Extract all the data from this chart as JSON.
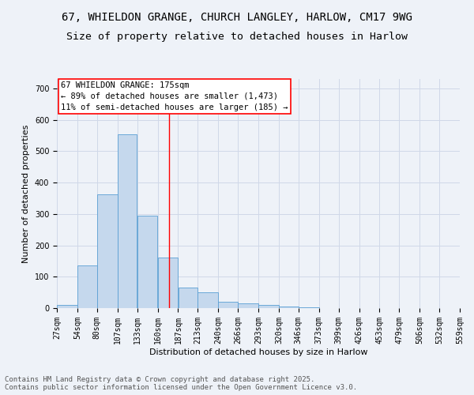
{
  "title1": "67, WHIELDON GRANGE, CHURCH LANGLEY, HARLOW, CM17 9WG",
  "title2": "Size of property relative to detached houses in Harlow",
  "xlabel": "Distribution of detached houses by size in Harlow",
  "ylabel": "Number of detached properties",
  "bar_edges": [
    27,
    54,
    80,
    107,
    133,
    160,
    187,
    213,
    240,
    266,
    293,
    320,
    346,
    373,
    399,
    426,
    453,
    479,
    506,
    532,
    559
  ],
  "bar_heights": [
    10,
    135,
    362,
    555,
    295,
    160,
    65,
    50,
    20,
    15,
    10,
    5,
    2,
    0,
    0,
    0,
    0,
    0,
    0,
    0
  ],
  "bar_color": "#c5d8ed",
  "bar_edge_color": "#5a9fd4",
  "grid_color": "#d0d8e8",
  "background_color": "#eef2f8",
  "red_line_x": 175,
  "annotation_text": "67 WHIELDON GRANGE: 175sqm\n← 89% of detached houses are smaller (1,473)\n11% of semi-detached houses are larger (185) →",
  "annotation_box_color": "#ffffff",
  "annotation_text_color": "#000000",
  "ylim": [
    0,
    730
  ],
  "yticks": [
    0,
    100,
    200,
    300,
    400,
    500,
    600,
    700
  ],
  "footer1": "Contains HM Land Registry data © Crown copyright and database right 2025.",
  "footer2": "Contains public sector information licensed under the Open Government Licence v3.0.",
  "title1_fontsize": 10,
  "title2_fontsize": 9.5,
  "axis_label_fontsize": 8,
  "tick_fontsize": 7,
  "footer_fontsize": 6.5,
  "annotation_fontsize": 7.5
}
